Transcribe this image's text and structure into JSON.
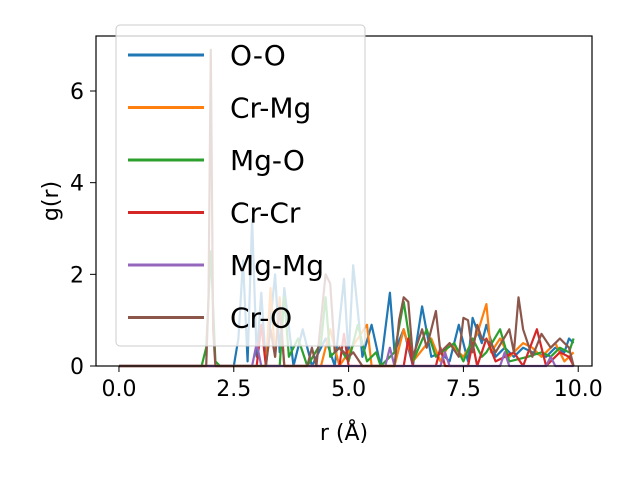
{
  "chart_data": {
    "type": "line",
    "xlabel": "r (Å)",
    "ylabel": "g(r)",
    "xlim": [
      -0.5,
      10.3
    ],
    "ylim": [
      0,
      7.2
    ],
    "xticks": [
      "0.0",
      "2.5",
      "5.0",
      "7.5",
      "10.0"
    ],
    "yticks": [
      "0",
      "2",
      "4",
      "6"
    ],
    "grid": false,
    "legend_position": "top-left",
    "series": [
      {
        "name": "O-O",
        "color": "#1f77b4",
        "points": [
          [
            0.0,
            0
          ],
          [
            2.5,
            0
          ],
          [
            2.6,
            0.6
          ],
          [
            2.7,
            2.3
          ],
          [
            2.8,
            0.1
          ],
          [
            2.9,
            3.2
          ],
          [
            3.0,
            0.2
          ],
          [
            3.1,
            1.6
          ],
          [
            3.2,
            0
          ],
          [
            3.4,
            2.0
          ],
          [
            3.5,
            0.3
          ],
          [
            3.6,
            1.7
          ],
          [
            3.8,
            0
          ],
          [
            4.0,
            0.8
          ],
          [
            4.2,
            0
          ],
          [
            4.5,
            0.6
          ],
          [
            4.7,
            0
          ],
          [
            4.9,
            1.9
          ],
          [
            5.0,
            0.2
          ],
          [
            5.1,
            2.2
          ],
          [
            5.3,
            0.2
          ],
          [
            5.5,
            0.9
          ],
          [
            5.7,
            0
          ],
          [
            5.9,
            1.6
          ],
          [
            6.0,
            0.3
          ],
          [
            6.2,
            0.8
          ],
          [
            6.4,
            0
          ],
          [
            6.6,
            1.3
          ],
          [
            6.8,
            0.2
          ],
          [
            7.0,
            0.3
          ],
          [
            7.2,
            0.1
          ],
          [
            7.4,
            0.9
          ],
          [
            7.6,
            0.1
          ],
          [
            7.7,
            1.05
          ],
          [
            7.9,
            0.5
          ],
          [
            8.0,
            0.9
          ],
          [
            8.2,
            0.2
          ],
          [
            8.4,
            0.4
          ],
          [
            8.6,
            0.2
          ],
          [
            8.8,
            0.4
          ],
          [
            9.0,
            0.3
          ],
          [
            9.3,
            0.2
          ],
          [
            9.5,
            0.4
          ],
          [
            9.7,
            0.3
          ],
          [
            9.8,
            0.6
          ],
          [
            9.9,
            0.5
          ]
        ]
      },
      {
        "name": "Cr-Mg",
        "color": "#ff7f0e",
        "points": [
          [
            0.0,
            0
          ],
          [
            3.2,
            0
          ],
          [
            3.3,
            1.7
          ],
          [
            3.4,
            0.2
          ],
          [
            3.5,
            1.5
          ],
          [
            3.6,
            0
          ],
          [
            4.4,
            0
          ],
          [
            4.6,
            0.8
          ],
          [
            4.8,
            0
          ],
          [
            5.2,
            0.6
          ],
          [
            5.4,
            0.9
          ],
          [
            5.5,
            0
          ],
          [
            6.0,
            0
          ],
          [
            6.2,
            0.8
          ],
          [
            6.4,
            0.1
          ],
          [
            6.8,
            0.6
          ],
          [
            7.0,
            0.1
          ],
          [
            7.2,
            0.5
          ],
          [
            7.5,
            0.2
          ],
          [
            7.8,
            0.7
          ],
          [
            8.0,
            1.35
          ],
          [
            8.1,
            0.3
          ],
          [
            8.3,
            0.6
          ],
          [
            8.5,
            0.2
          ],
          [
            8.8,
            0.5
          ],
          [
            9.0,
            0.4
          ],
          [
            9.2,
            0.2
          ],
          [
            9.5,
            0.5
          ],
          [
            9.7,
            0.1
          ],
          [
            9.9,
            0.3
          ]
        ]
      },
      {
        "name": "Mg-O",
        "color": "#2ca02c",
        "points": [
          [
            0.0,
            0
          ],
          [
            1.8,
            0
          ],
          [
            1.9,
            0.4
          ],
          [
            2.0,
            2.5
          ],
          [
            2.1,
            0.1
          ],
          [
            2.2,
            0
          ],
          [
            3.5,
            0
          ],
          [
            3.6,
            1.5
          ],
          [
            3.7,
            0.2
          ],
          [
            3.9,
            0.6
          ],
          [
            4.1,
            0
          ],
          [
            4.4,
            0.5
          ],
          [
            4.5,
            1.5
          ],
          [
            4.6,
            0.2
          ],
          [
            4.8,
            0.4
          ],
          [
            5.0,
            0.1
          ],
          [
            5.2,
            0.9
          ],
          [
            5.4,
            0.1
          ],
          [
            5.6,
            0.3
          ],
          [
            5.7,
            0
          ],
          [
            6.0,
            0.3
          ],
          [
            6.2,
            1.4
          ],
          [
            6.4,
            0.1
          ],
          [
            6.7,
            0.8
          ],
          [
            6.9,
            0.2
          ],
          [
            7.3,
            0.5
          ],
          [
            7.5,
            0.1
          ],
          [
            7.7,
            0.6
          ],
          [
            7.9,
            0.2
          ],
          [
            8.0,
            0.3
          ],
          [
            8.3,
            0.8
          ],
          [
            8.5,
            0.1
          ],
          [
            8.9,
            0.2
          ],
          [
            9.2,
            0.3
          ],
          [
            9.4,
            0.2
          ],
          [
            9.6,
            0.4
          ],
          [
            9.8,
            0.3
          ],
          [
            9.9,
            0.6
          ]
        ]
      },
      {
        "name": "Cr-Cr",
        "color": "#d62728",
        "points": [
          [
            0.0,
            0
          ],
          [
            3.0,
            0
          ],
          [
            3.1,
            0.9
          ],
          [
            3.2,
            0
          ],
          [
            4.8,
            0
          ],
          [
            4.9,
            0.7
          ],
          [
            5.0,
            0
          ],
          [
            6.2,
            0
          ],
          [
            6.3,
            0.6
          ],
          [
            6.4,
            0
          ],
          [
            6.9,
            0
          ],
          [
            7.0,
            0.4
          ],
          [
            7.1,
            0
          ],
          [
            7.6,
            0
          ],
          [
            7.7,
            0.5
          ],
          [
            7.8,
            0
          ],
          [
            8.0,
            0.6
          ],
          [
            8.2,
            0.1
          ],
          [
            8.6,
            0.3
          ],
          [
            8.8,
            0
          ],
          [
            9.1,
            0.8
          ],
          [
            9.3,
            0
          ],
          [
            9.6,
            0.3
          ],
          [
            9.8,
            0.2
          ],
          [
            9.9,
            0
          ]
        ]
      },
      {
        "name": "Mg-Mg",
        "color": "#9467bd",
        "points": [
          [
            0.0,
            0
          ],
          [
            2.9,
            0
          ],
          [
            3.0,
            0.5
          ],
          [
            3.1,
            0
          ],
          [
            5.8,
            0
          ],
          [
            5.9,
            0.4
          ],
          [
            6.0,
            0
          ],
          [
            7.0,
            0
          ],
          [
            7.1,
            0.3
          ],
          [
            7.2,
            0
          ],
          [
            8.3,
            0
          ],
          [
            8.4,
            0.3
          ],
          [
            8.5,
            0
          ],
          [
            9.3,
            0
          ],
          [
            9.4,
            0.2
          ],
          [
            9.5,
            0
          ],
          [
            9.9,
            0
          ]
        ]
      },
      {
        "name": "Cr-O",
        "color": "#8c564b",
        "points": [
          [
            0.0,
            0
          ],
          [
            1.9,
            0
          ],
          [
            1.95,
            1.5
          ],
          [
            2.0,
            6.9
          ],
          [
            2.05,
            0.8
          ],
          [
            2.1,
            0
          ],
          [
            3.2,
            0
          ],
          [
            3.3,
            0.8
          ],
          [
            3.4,
            0.2
          ],
          [
            3.5,
            1.3
          ],
          [
            3.6,
            0
          ],
          [
            4.1,
            0
          ],
          [
            4.2,
            0.4
          ],
          [
            4.3,
            0
          ],
          [
            4.5,
            2.0
          ],
          [
            4.6,
            1.8
          ],
          [
            4.7,
            0.3
          ],
          [
            4.8,
            0.4
          ],
          [
            5.0,
            0.2
          ],
          [
            5.1,
            0.3
          ],
          [
            5.3,
            0
          ],
          [
            6.0,
            0
          ],
          [
            6.1,
            1.0
          ],
          [
            6.2,
            1.5
          ],
          [
            6.3,
            1.4
          ],
          [
            6.4,
            0.2
          ],
          [
            6.6,
            0.8
          ],
          [
            6.7,
            0.4
          ],
          [
            6.9,
            1.2
          ],
          [
            7.0,
            0.3
          ],
          [
            7.2,
            0.5
          ],
          [
            7.4,
            0.2
          ],
          [
            7.5,
            1.05
          ],
          [
            7.6,
            1.0
          ],
          [
            7.7,
            0.3
          ],
          [
            7.8,
            0.9
          ],
          [
            7.9,
            0.6
          ],
          [
            8.1,
            0.5
          ],
          [
            8.2,
            0.3
          ],
          [
            8.5,
            0.8
          ],
          [
            8.6,
            0.3
          ],
          [
            8.7,
            1.5
          ],
          [
            8.8,
            0.8
          ],
          [
            9.0,
            0.2
          ],
          [
            9.2,
            0.7
          ],
          [
            9.4,
            0.4
          ],
          [
            9.6,
            0.6
          ],
          [
            9.8,
            0.4
          ],
          [
            9.9,
            0
          ]
        ]
      }
    ]
  }
}
